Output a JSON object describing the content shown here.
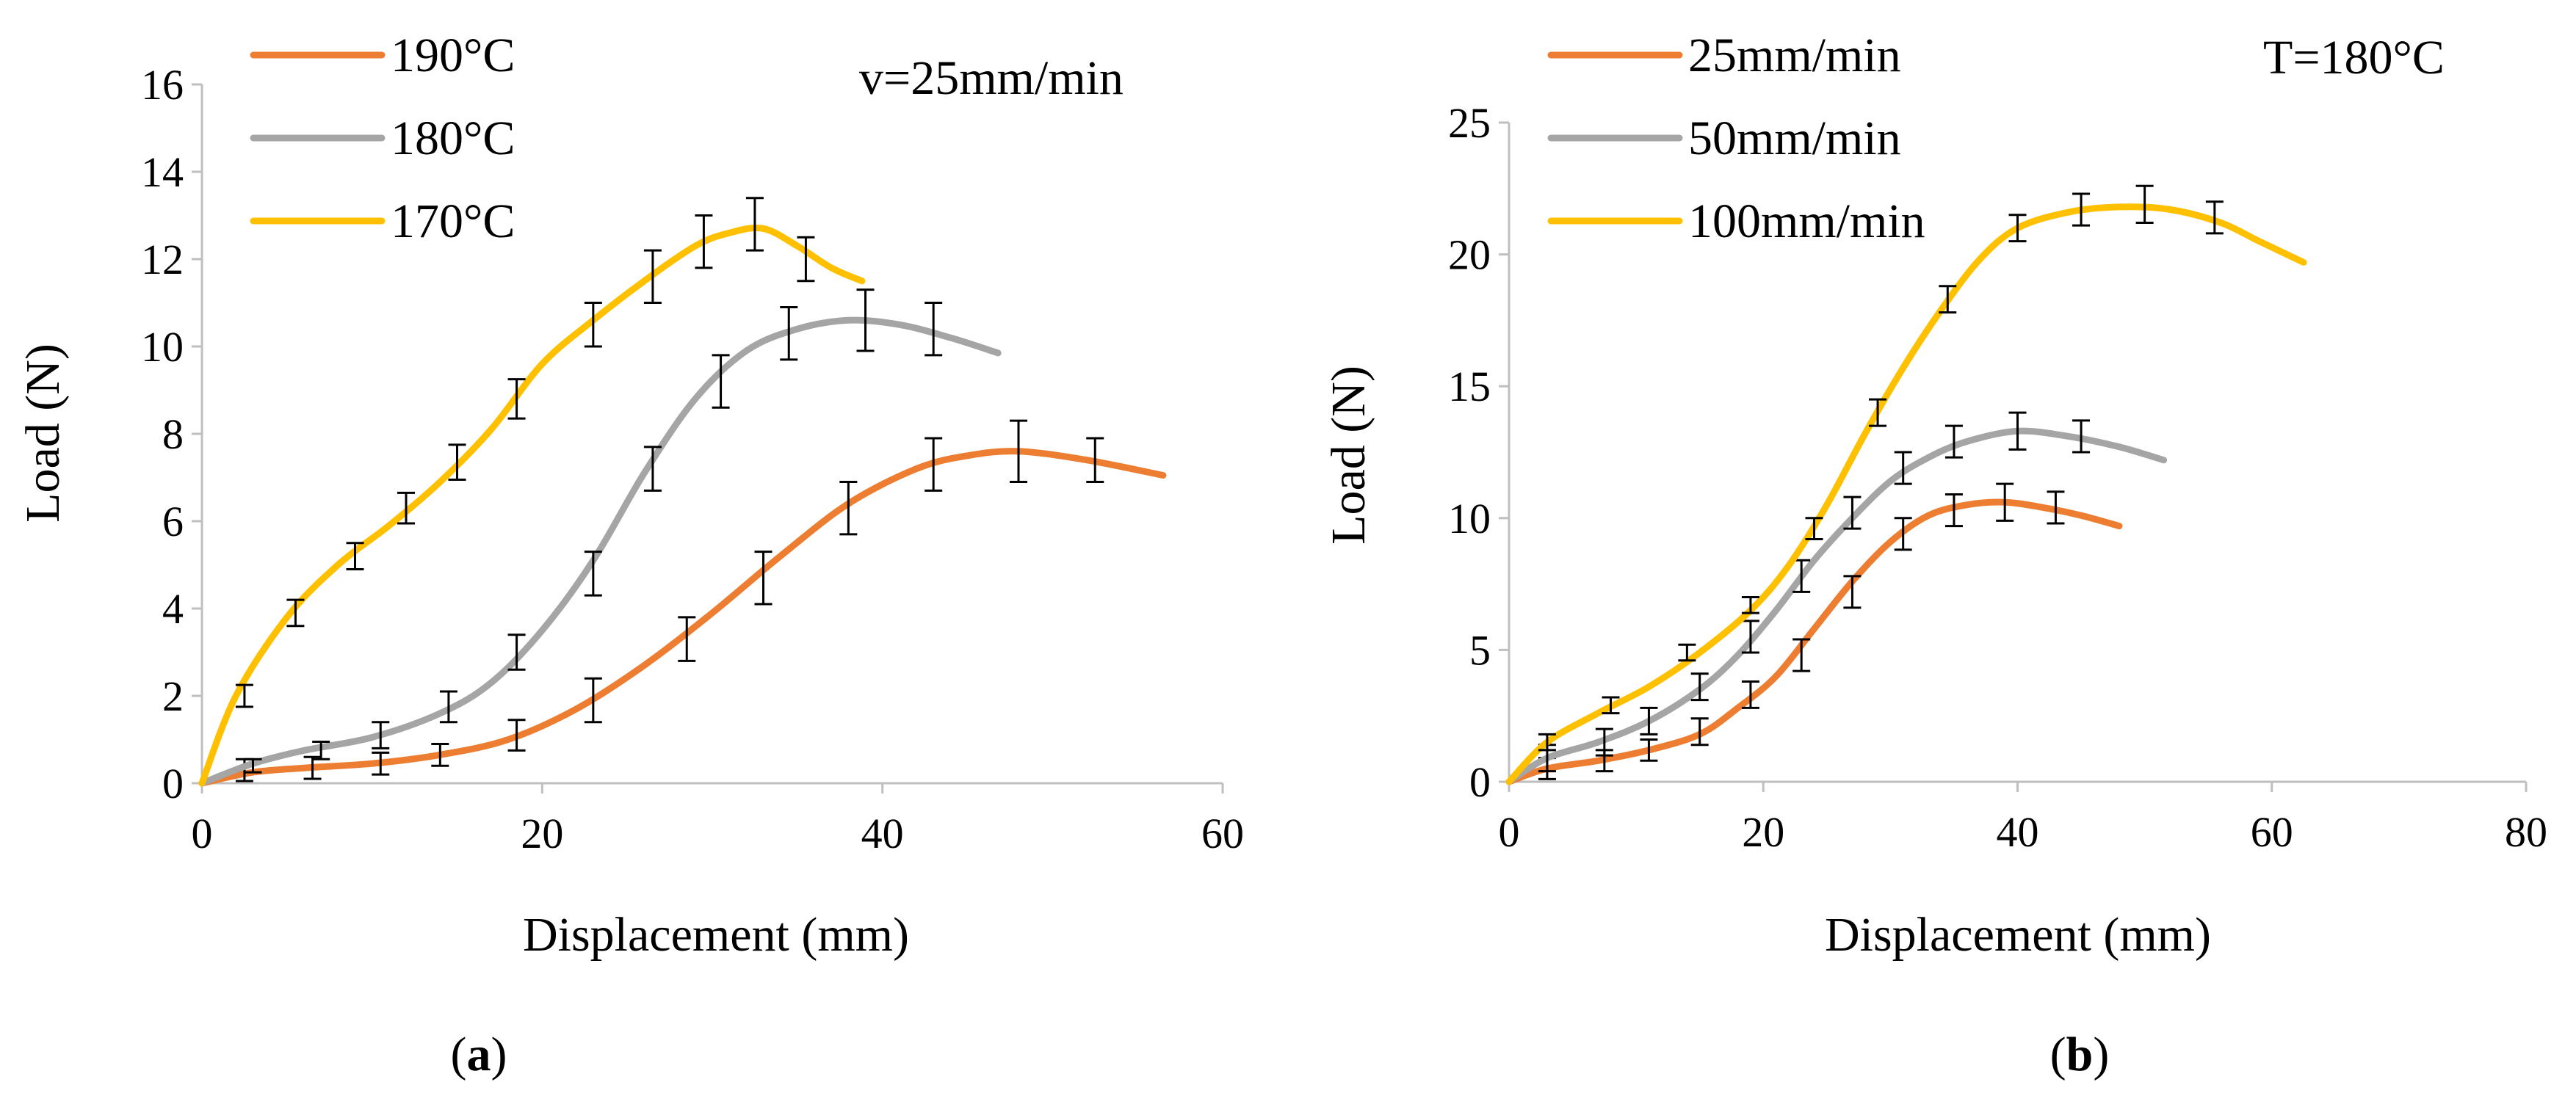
{
  "chart_data": [
    {
      "id": "a",
      "type": "line",
      "caption_letter": "a",
      "annotation": "v=25mm/min",
      "xlabel": "Displacement (mm)",
      "ylabel": "Load (N)",
      "xlim": [
        0,
        60
      ],
      "ylim": [
        0,
        16
      ],
      "xticks": [
        0,
        20,
        40,
        60
      ],
      "yticks": [
        0,
        2,
        4,
        6,
        8,
        10,
        12,
        14,
        16
      ],
      "series": [
        {
          "name": "190°C",
          "color": "#ED7D31",
          "x": [
            0,
            3,
            6,
            10,
            14,
            18,
            22,
            26,
            30,
            34,
            38,
            42,
            45,
            48,
            52,
            56.5
          ],
          "y": [
            0,
            0.25,
            0.35,
            0.45,
            0.65,
            1.0,
            1.7,
            2.7,
            3.9,
            5.2,
            6.4,
            7.2,
            7.5,
            7.6,
            7.4,
            7.05
          ],
          "errors": [
            {
              "x": 2.5,
              "y": 0.3,
              "e": 0.25
            },
            {
              "x": 6.5,
              "y": 0.35,
              "e": 0.25
            },
            {
              "x": 10.5,
              "y": 0.45,
              "e": 0.25
            },
            {
              "x": 14,
              "y": 0.65,
              "e": 0.25
            },
            {
              "x": 18.5,
              "y": 1.1,
              "e": 0.35
            },
            {
              "x": 23,
              "y": 1.9,
              "e": 0.5
            },
            {
              "x": 28.5,
              "y": 3.3,
              "e": 0.5
            },
            {
              "x": 33,
              "y": 4.7,
              "e": 0.6
            },
            {
              "x": 38,
              "y": 6.3,
              "e": 0.6
            },
            {
              "x": 43,
              "y": 7.3,
              "e": 0.6
            },
            {
              "x": 48,
              "y": 7.6,
              "e": 0.7
            },
            {
              "x": 52.5,
              "y": 7.4,
              "e": 0.5
            }
          ]
        },
        {
          "name": "180°C",
          "color": "#A5A5A5",
          "x": [
            0,
            3,
            6,
            10,
            14,
            17,
            20,
            23,
            26,
            29,
            32,
            35,
            38,
            41,
            44,
            46.8
          ],
          "y": [
            0,
            0.45,
            0.75,
            1.05,
            1.6,
            2.3,
            3.5,
            5.1,
            7.1,
            8.8,
            9.9,
            10.4,
            10.6,
            10.5,
            10.2,
            9.85
          ],
          "errors": [
            {
              "x": 3,
              "y": 0.4,
              "e": 0.15
            },
            {
              "x": 7,
              "y": 0.75,
              "e": 0.2
            },
            {
              "x": 10.5,
              "y": 1.1,
              "e": 0.3
            },
            {
              "x": 14.5,
              "y": 1.75,
              "e": 0.35
            },
            {
              "x": 18.5,
              "y": 3.0,
              "e": 0.4
            },
            {
              "x": 23,
              "y": 4.8,
              "e": 0.5
            },
            {
              "x": 26.5,
              "y": 7.2,
              "e": 0.5
            },
            {
              "x": 30.5,
              "y": 9.2,
              "e": 0.6
            },
            {
              "x": 34.5,
              "y": 10.3,
              "e": 0.6
            },
            {
              "x": 39,
              "y": 10.6,
              "e": 0.7
            },
            {
              "x": 43,
              "y": 10.4,
              "e": 0.6
            }
          ]
        },
        {
          "name": "170°C",
          "color": "#FFC000",
          "x": [
            0,
            2,
            5,
            8,
            11,
            14,
            17,
            20,
            23,
            26,
            29,
            31,
            33,
            35,
            37,
            38.8
          ],
          "y": [
            0,
            2.0,
            3.8,
            5.0,
            5.9,
            6.9,
            8.1,
            9.6,
            10.6,
            11.5,
            12.3,
            12.6,
            12.7,
            12.3,
            11.8,
            11.5
          ],
          "errors": [
            {
              "x": 2.5,
              "y": 2.0,
              "e": 0.25
            },
            {
              "x": 5.5,
              "y": 3.9,
              "e": 0.3
            },
            {
              "x": 9,
              "y": 5.2,
              "e": 0.3
            },
            {
              "x": 12,
              "y": 6.3,
              "e": 0.35
            },
            {
              "x": 15,
              "y": 7.35,
              "e": 0.4
            },
            {
              "x": 18.5,
              "y": 8.8,
              "e": 0.45
            },
            {
              "x": 23,
              "y": 10.5,
              "e": 0.5
            },
            {
              "x": 26.5,
              "y": 11.6,
              "e": 0.6
            },
            {
              "x": 29.5,
              "y": 12.4,
              "e": 0.6
            },
            {
              "x": 32.5,
              "y": 12.8,
              "e": 0.6
            },
            {
              "x": 35.5,
              "y": 12.0,
              "e": 0.5
            }
          ]
        }
      ]
    },
    {
      "id": "b",
      "type": "line",
      "caption_letter": "b",
      "annotation": "T=180°C",
      "xlabel": "Displacement (mm)",
      "ylabel": "Load (N)",
      "xlim": [
        0,
        80
      ],
      "ylim": [
        0,
        25
      ],
      "xticks": [
        0,
        20,
        40,
        60,
        80
      ],
      "yticks": [
        0,
        5,
        10,
        15,
        20,
        25
      ],
      "series": [
        {
          "name": "25mm/min",
          "color": "#ED7D31",
          "x": [
            0,
            3,
            7,
            11,
            15,
            18,
            21,
            24,
            27,
            30,
            33,
            36,
            39,
            42,
            45,
            48
          ],
          "y": [
            0,
            0.5,
            0.8,
            1.2,
            1.8,
            2.8,
            4.0,
            5.8,
            7.6,
            9.1,
            10.1,
            10.5,
            10.6,
            10.4,
            10.1,
            9.7
          ],
          "errors": [
            {
              "x": 3,
              "y": 0.5,
              "e": 0.4
            },
            {
              "x": 7.5,
              "y": 0.8,
              "e": 0.4
            },
            {
              "x": 11,
              "y": 1.2,
              "e": 0.4
            },
            {
              "x": 15,
              "y": 1.9,
              "e": 0.5
            },
            {
              "x": 19,
              "y": 3.3,
              "e": 0.5
            },
            {
              "x": 23,
              "y": 4.8,
              "e": 0.6
            },
            {
              "x": 27,
              "y": 7.2,
              "e": 0.6
            },
            {
              "x": 31,
              "y": 9.4,
              "e": 0.6
            },
            {
              "x": 35,
              "y": 10.3,
              "e": 0.6
            },
            {
              "x": 39,
              "y": 10.6,
              "e": 0.7
            },
            {
              "x": 43,
              "y": 10.4,
              "e": 0.6
            }
          ]
        },
        {
          "name": "50mm/min",
          "color": "#A5A5A5",
          "x": [
            0,
            3,
            7,
            11,
            15,
            18,
            21,
            24,
            27,
            30,
            33,
            36,
            40,
            44,
            48,
            51.5
          ],
          "y": [
            0,
            0.9,
            1.5,
            2.3,
            3.5,
            4.8,
            6.5,
            8.4,
            10.0,
            11.4,
            12.3,
            12.9,
            13.3,
            13.1,
            12.7,
            12.2
          ],
          "errors": [
            {
              "x": 3,
              "y": 0.9,
              "e": 0.5
            },
            {
              "x": 7.5,
              "y": 1.5,
              "e": 0.5
            },
            {
              "x": 11,
              "y": 2.3,
              "e": 0.5
            },
            {
              "x": 15,
              "y": 3.6,
              "e": 0.5
            },
            {
              "x": 19,
              "y": 5.5,
              "e": 0.6
            },
            {
              "x": 23,
              "y": 7.8,
              "e": 0.6
            },
            {
              "x": 27,
              "y": 10.2,
              "e": 0.6
            },
            {
              "x": 31,
              "y": 11.9,
              "e": 0.6
            },
            {
              "x": 35,
              "y": 12.9,
              "e": 0.6
            },
            {
              "x": 40,
              "y": 13.3,
              "e": 0.7
            },
            {
              "x": 45,
              "y": 13.1,
              "e": 0.6
            }
          ]
        },
        {
          "name": "100mm/min",
          "color": "#FFC000",
          "x": [
            0,
            3,
            7,
            11,
            15,
            19,
            22,
            25,
            28,
            31,
            34,
            37,
            40,
            44,
            48,
            52,
            56,
            59,
            62.5
          ],
          "y": [
            0,
            1.5,
            2.6,
            3.6,
            4.9,
            6.5,
            8.2,
            10.5,
            13.2,
            15.7,
            17.9,
            19.8,
            21.0,
            21.6,
            21.8,
            21.7,
            21.2,
            20.5,
            19.7
          ],
          "errors": [
            {
              "x": 3,
              "y": 1.5,
              "e": 0.3
            },
            {
              "x": 8,
              "y": 2.9,
              "e": 0.3
            },
            {
              "x": 14,
              "y": 4.9,
              "e": 0.3
            },
            {
              "x": 19,
              "y": 6.7,
              "e": 0.3
            },
            {
              "x": 24,
              "y": 9.6,
              "e": 0.4
            },
            {
              "x": 29,
              "y": 14.0,
              "e": 0.5
            },
            {
              "x": 34.5,
              "y": 18.3,
              "e": 0.5
            },
            {
              "x": 40,
              "y": 21.0,
              "e": 0.5
            },
            {
              "x": 45,
              "y": 21.7,
              "e": 0.6
            },
            {
              "x": 50,
              "y": 21.9,
              "e": 0.7
            },
            {
              "x": 55.5,
              "y": 21.4,
              "e": 0.6
            }
          ]
        }
      ]
    }
  ]
}
